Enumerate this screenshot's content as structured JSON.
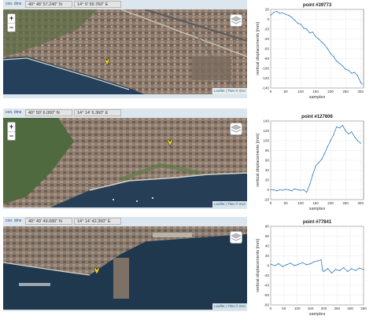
{
  "panels": [
    {
      "coord_label": "coo. dms",
      "lat": "40° 48' 57.240\" N",
      "lon": "14° 9' 59.760\" E",
      "attribution": "Leaflet | Tiles © Esri",
      "chart_title": "point #39773",
      "chart_xlabel": "samples",
      "chart_ylabel": "vertical displacements [mm]"
    },
    {
      "coord_label": "coo. dms",
      "lat": "40° 50' 6.000\" N",
      "lon": "14° 14' 6.360\" E",
      "attribution": "Leaflet | Tiles © Esri",
      "chart_title": "point #127606",
      "chart_xlabel": "samples",
      "chart_ylabel": "vertical displacements [mm]"
    },
    {
      "coord_label": "coo. dms",
      "lat": "40° 49' 49.080\" N",
      "lon": "14° 14' 42.360\" E",
      "attribution": "Leaflet | Tiles © Esri",
      "chart_title": "point #77841",
      "chart_xlabel": "samples",
      "chart_ylabel": "vertical displacements [mm]"
    }
  ],
  "map_controls": {
    "zoom_in": "+",
    "zoom_out": "−"
  },
  "colors": {
    "series": "#2f7fbf",
    "map_sea": "#1f3a52",
    "map_land": "#8a7a6e",
    "ui_bar": "#dbe6ef"
  },
  "icons": [
    "layers-icon",
    "map-marker-icon"
  ],
  "chart_data": [
    {
      "type": "line",
      "title": "point #39773",
      "xlabel": "samples",
      "ylabel": "vertical displacements [mm]",
      "xlim": [
        0,
        310
      ],
      "ylim": [
        -140,
        20
      ],
      "xticks": [
        0,
        50,
        100,
        150,
        200,
        250,
        300
      ],
      "yticks": [
        -140,
        -120,
        -100,
        -80,
        -60,
        -40,
        -20,
        0,
        20
      ],
      "grid": true,
      "x": [
        0,
        10,
        20,
        30,
        40,
        50,
        60,
        70,
        80,
        90,
        100,
        110,
        120,
        130,
        140,
        150,
        160,
        170,
        180,
        190,
        200,
        210,
        220,
        230,
        240,
        250,
        260,
        270,
        280,
        290,
        300,
        305
      ],
      "y": [
        8,
        14,
        16,
        12,
        13,
        10,
        8,
        4,
        -2,
        -8,
        -10,
        -18,
        -20,
        -28,
        -26,
        -35,
        -40,
        -46,
        -52,
        -60,
        -70,
        -76,
        -85,
        -90,
        -95,
        -102,
        -104,
        -110,
        -108,
        -115,
        -128,
        -132
      ]
    },
    {
      "type": "line",
      "title": "point #127606",
      "xlabel": "samples",
      "ylabel": "vertical displacements [mm]",
      "xlim": [
        0,
        310
      ],
      "ylim": [
        -20,
        140
      ],
      "xticks": [
        0,
        50,
        100,
        150,
        200,
        250,
        300
      ],
      "yticks": [
        -20,
        0,
        20,
        40,
        60,
        80,
        100,
        120,
        140
      ],
      "grid": true,
      "x": [
        0,
        10,
        20,
        30,
        40,
        50,
        60,
        70,
        80,
        90,
        100,
        110,
        120,
        130,
        140,
        150,
        160,
        170,
        180,
        190,
        200,
        210,
        220,
        230,
        240,
        250,
        260,
        270,
        280,
        290,
        300
      ],
      "y": [
        0,
        0,
        -2,
        0,
        -1,
        1,
        0,
        -2,
        2,
        0,
        -1,
        0,
        -5,
        10,
        30,
        48,
        55,
        62,
        74,
        88,
        100,
        112,
        128,
        126,
        131,
        120,
        114,
        118,
        108,
        100,
        95
      ]
    },
    {
      "type": "line",
      "title": "point #77841",
      "xlabel": "samples",
      "ylabel": "vertical displacements [mm]",
      "xlim": [
        0,
        350
      ],
      "ylim": [
        -80,
        80
      ],
      "xticks": [
        0,
        50,
        100,
        150,
        200,
        250,
        300,
        350
      ],
      "yticks": [
        -80,
        -60,
        -40,
        -20,
        0,
        20,
        40,
        60,
        80
      ],
      "grid": true,
      "x": [
        0,
        15,
        30,
        45,
        60,
        75,
        90,
        105,
        120,
        135,
        150,
        165,
        180,
        190,
        195,
        200,
        215,
        230,
        245,
        260,
        275,
        290,
        305,
        320,
        335,
        350
      ],
      "y": [
        3,
        0,
        4,
        -2,
        2,
        5,
        0,
        3,
        6,
        2,
        4,
        8,
        10,
        12,
        -8,
        -12,
        -6,
        -15,
        -8,
        -10,
        -4,
        -12,
        -6,
        -10,
        -5,
        -8
      ]
    }
  ]
}
